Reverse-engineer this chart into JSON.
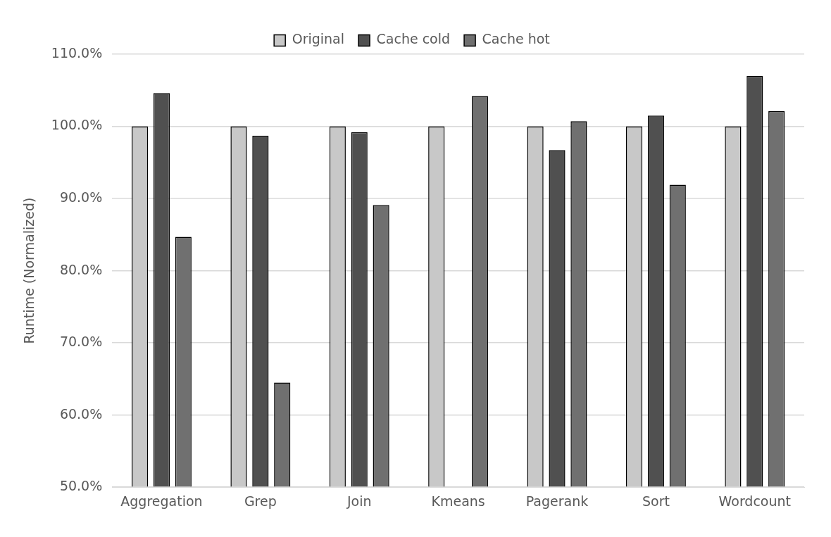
{
  "chart_data": {
    "type": "bar",
    "ylabel": "Runtime (Normalized)",
    "categories": [
      "Aggregation",
      "Grep",
      "Join",
      "Kmeans",
      "Pagerank",
      "Sort",
      "Wordcount"
    ],
    "series": [
      {
        "name": "Original",
        "color": "#c8c8c8",
        "values": [
          100,
          100,
          100,
          100,
          100,
          100,
          100
        ]
      },
      {
        "name": "Cache cold",
        "color": "#505050",
        "values": [
          104.6,
          98.7,
          99.2,
          null,
          96.7,
          101.5,
          107.0
        ]
      },
      {
        "name": "Cache hot",
        "color": "#707070",
        "values": [
          84.7,
          64.5,
          89.1,
          104.2,
          100.7,
          91.9,
          102.1
        ]
      }
    ],
    "ylim": [
      50,
      110
    ],
    "yticks": [
      {
        "value": 50,
        "label": "50.0%"
      },
      {
        "value": 60,
        "label": "60.0%"
      },
      {
        "value": 70,
        "label": "70.0%"
      },
      {
        "value": 80,
        "label": "80.0%"
      },
      {
        "value": 90,
        "label": "90.0%"
      },
      {
        "value": 100,
        "label": "100.0%"
      },
      {
        "value": 110,
        "label": "110.0%"
      }
    ],
    "grid": "y",
    "legend": "top"
  }
}
